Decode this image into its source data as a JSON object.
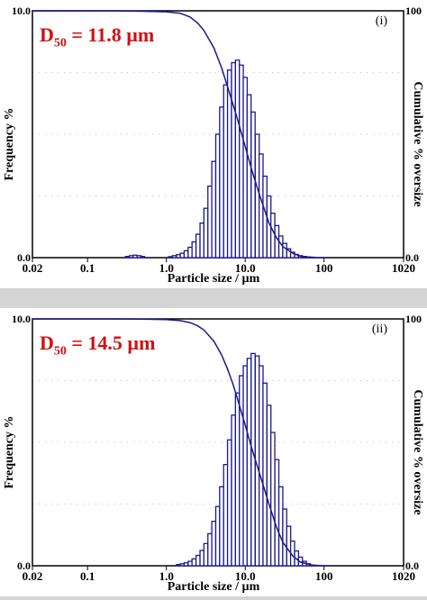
{
  "panels": [
    {
      "label_roman": "(i)",
      "d50": {
        "prefix": "D",
        "subscript": "50",
        "text": " = 11.8 µm"
      },
      "xlabel": "Particle size / µm",
      "ylabel_left": "Frequency %",
      "ylabel_right": "Cumulative % oversize",
      "left_ticks": [
        "10.0",
        "0.0"
      ],
      "right_ticks": [
        "100",
        "0.0"
      ],
      "x_ticks": [
        "0.02",
        "0.1",
        "1.0",
        "10.0",
        "100",
        "1020"
      ]
    },
    {
      "label_roman": "(ii)",
      "d50": {
        "prefix": "D",
        "subscript": "50",
        "text": " = 14.5 µm"
      },
      "xlabel": "Particle size / µm",
      "ylabel_left": "Frequency %",
      "ylabel_right": "Cumulative % oversize",
      "left_ticks": [
        "10.0",
        "0.0"
      ],
      "right_ticks": [
        "100",
        "0.0"
      ],
      "x_ticks": [
        "0.02",
        "0.1",
        "1.0",
        "10.0",
        "100",
        "1020"
      ]
    }
  ],
  "colors": {
    "bars": "#1a1a8c",
    "curve": "#1a1a8c",
    "d50": "#d01010",
    "grid": "#bbbbbb"
  },
  "chart_data": [
    {
      "type": "bar",
      "x_scale": "log",
      "xlim": [
        0.02,
        1020
      ],
      "ylim": [
        0,
        10
      ],
      "y2lim": [
        0,
        100
      ],
      "grid": true,
      "series": [
        {
          "kind": "histogram",
          "x": [
            0.32,
            0.36,
            0.4,
            0.45,
            0.5,
            1.13,
            1.26,
            1.42,
            1.59,
            1.78,
            2.0,
            2.24,
            2.52,
            2.83,
            3.17,
            3.56,
            3.99,
            4.48,
            5.02,
            5.64,
            6.32,
            7.1,
            7.96,
            8.93,
            10.0,
            11.2,
            12.6,
            14.2,
            15.9,
            17.8,
            20.0,
            22.4,
            25.2,
            28.3,
            31.7,
            35.6,
            39.9,
            44.8,
            50.2,
            56.4,
            63.2,
            71.0
          ],
          "values": [
            0.05,
            0.08,
            0.1,
            0.08,
            0.05,
            0.04,
            0.08,
            0.12,
            0.18,
            0.28,
            0.42,
            0.64,
            0.95,
            1.4,
            2.0,
            2.9,
            3.9,
            5.0,
            6.1,
            7.0,
            7.6,
            7.9,
            8.0,
            7.8,
            7.3,
            6.6,
            5.9,
            5.0,
            4.2,
            3.3,
            2.5,
            1.8,
            1.3,
            0.88,
            0.58,
            0.36,
            0.22,
            0.13,
            0.08,
            0.05,
            0.03,
            0.02
          ]
        },
        {
          "kind": "cumulative_oversize",
          "x": [
            0.2,
            0.5,
            1.0,
            1.5,
            2.0,
            2.5,
            3.0,
            4.0,
            5.0,
            6.0,
            7.0,
            8.0,
            10.0,
            12.0,
            15.0,
            20.0,
            25.0,
            30.0,
            40.0,
            50.0,
            70.0,
            100.0
          ],
          "values": [
            100,
            99.8,
            99.6,
            99.0,
            97.5,
            95.0,
            92.0,
            85.0,
            77.0,
            69.0,
            62.0,
            56.0,
            45.0,
            36.0,
            26.0,
            14.0,
            8.0,
            4.5,
            1.8,
            0.6,
            0.1,
            0.0
          ]
        }
      ]
    },
    {
      "type": "bar",
      "x_scale": "log",
      "xlim": [
        0.02,
        1020
      ],
      "ylim": [
        0,
        10
      ],
      "y2lim": [
        0,
        100
      ],
      "grid": true,
      "series": [
        {
          "kind": "histogram",
          "x": [
            1.42,
            1.59,
            1.78,
            2.0,
            2.24,
            2.52,
            2.83,
            3.17,
            3.56,
            3.99,
            4.48,
            5.02,
            5.64,
            6.32,
            7.1,
            7.96,
            8.93,
            10.0,
            11.2,
            12.6,
            14.2,
            15.9,
            17.8,
            20.0,
            22.4,
            25.2,
            28.3,
            31.7,
            35.6,
            39.9,
            44.8,
            50.2,
            56.4,
            63.2,
            71.0
          ],
          "values": [
            0.05,
            0.08,
            0.12,
            0.18,
            0.28,
            0.42,
            0.62,
            0.9,
            1.3,
            1.8,
            2.4,
            3.2,
            4.1,
            5.1,
            6.1,
            7.0,
            7.7,
            8.1,
            8.4,
            8.6,
            8.5,
            8.1,
            7.4,
            6.5,
            5.4,
            4.3,
            3.2,
            2.3,
            1.6,
            1.0,
            0.6,
            0.35,
            0.18,
            0.08,
            0.03
          ]
        },
        {
          "kind": "cumulative_oversize",
          "x": [
            0.2,
            0.5,
            1.0,
            1.5,
            2.0,
            2.5,
            3.0,
            4.0,
            5.0,
            6.0,
            7.0,
            8.0,
            10.0,
            12.0,
            15.0,
            20.0,
            25.0,
            30.0,
            40.0,
            50.0,
            70.0,
            100.0
          ],
          "values": [
            100,
            99.9,
            99.7,
            99.3,
            98.5,
            97.2,
            95.5,
            91.0,
            85.5,
            79.5,
            73.5,
            67.5,
            57.0,
            48.0,
            38.0,
            25.0,
            15.5,
            9.5,
            4.0,
            1.5,
            0.3,
            0.0
          ]
        }
      ]
    }
  ]
}
